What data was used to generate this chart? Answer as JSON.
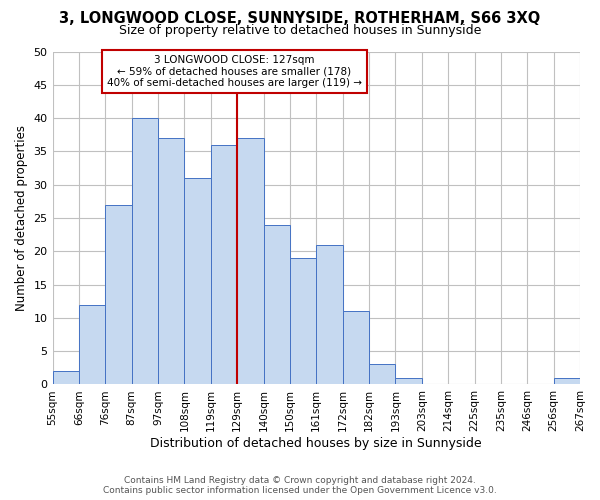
{
  "title": "3, LONGWOOD CLOSE, SUNNYSIDE, ROTHERHAM, S66 3XQ",
  "subtitle": "Size of property relative to detached houses in Sunnyside",
  "xlabel": "Distribution of detached houses by size in Sunnyside",
  "ylabel": "Number of detached properties",
  "footer_line1": "Contains HM Land Registry data © Crown copyright and database right 2024.",
  "footer_line2": "Contains public sector information licensed under the Open Government Licence v3.0.",
  "tick_labels": [
    "55sqm",
    "66sqm",
    "76sqm",
    "87sqm",
    "97sqm",
    "108sqm",
    "119sqm",
    "129sqm",
    "140sqm",
    "150sqm",
    "161sqm",
    "172sqm",
    "182sqm",
    "193sqm",
    "203sqm",
    "214sqm",
    "225sqm",
    "235sqm",
    "246sqm",
    "256sqm",
    "267sqm"
  ],
  "values": [
    2,
    12,
    27,
    40,
    37,
    31,
    36,
    37,
    24,
    19,
    21,
    11,
    3,
    1,
    0,
    0,
    0,
    0,
    0,
    1
  ],
  "bar_color": "#c6d9f0",
  "bar_edge_color": "#4472c4",
  "ylim": [
    0,
    50
  ],
  "yticks": [
    0,
    5,
    10,
    15,
    20,
    25,
    30,
    35,
    40,
    45,
    50
  ],
  "marker_bin_index": 7,
  "marker_line_color": "#c00000",
  "annotation_title": "3 LONGWOOD CLOSE: 127sqm",
  "annotation_line1": "← 59% of detached houses are smaller (178)",
  "annotation_line2": "40% of semi-detached houses are larger (119) →",
  "annotation_box_edge": "#c00000",
  "background_color": "#ffffff",
  "grid_color": "#c0c0c0"
}
